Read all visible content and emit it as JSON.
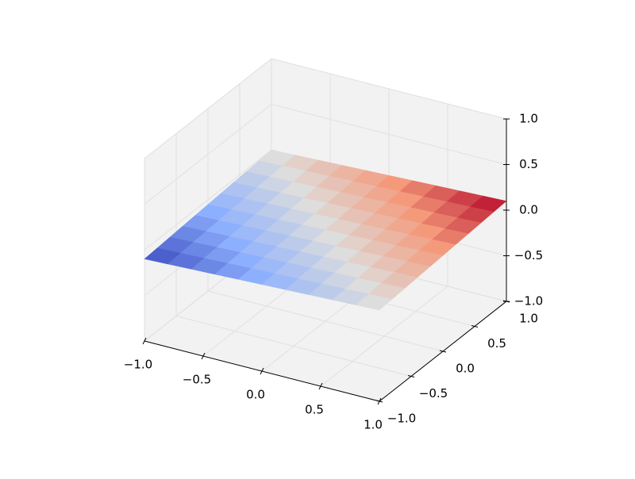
{
  "chart_data": {
    "type": "surface",
    "colormap": "coolwarm",
    "x": [
      -1,
      -0.8,
      -0.6,
      -0.4,
      -0.2,
      0,
      0.2,
      0.4,
      0.6,
      0.8,
      1
    ],
    "y": [
      -1,
      -0.8,
      -0.6,
      -0.4,
      -0.2,
      0,
      0.2,
      0.4,
      0.6,
      0.8,
      1
    ],
    "z": [
      [
        -0.1,
        -0.09,
        -0.08,
        -0.07,
        -0.06,
        -0.05,
        -0.04,
        -0.03,
        -0.02,
        -0.01,
        0
      ],
      [
        -0.09,
        -0.08,
        -0.07,
        -0.06,
        -0.05,
        -0.04,
        -0.03,
        -0.02,
        -0.01,
        0,
        0.01
      ],
      [
        -0.08,
        -0.07,
        -0.06,
        -0.05,
        -0.04,
        -0.03,
        -0.02,
        -0.01,
        0,
        0.01,
        0.02
      ],
      [
        -0.07,
        -0.06,
        -0.05,
        -0.04,
        -0.03,
        -0.02,
        -0.01,
        0,
        0.01,
        0.02,
        0.03
      ],
      [
        -0.06,
        -0.05,
        -0.04,
        -0.03,
        -0.02,
        -0.01,
        0,
        0.01,
        0.02,
        0.03,
        0.04
      ],
      [
        -0.05,
        -0.04,
        -0.03,
        -0.02,
        -0.01,
        0,
        0.01,
        0.02,
        0.03,
        0.04,
        0.05
      ],
      [
        -0.04,
        -0.03,
        -0.02,
        -0.01,
        0,
        0.01,
        0.02,
        0.03,
        0.04,
        0.05,
        0.06
      ],
      [
        -0.03,
        -0.02,
        -0.01,
        0,
        0.01,
        0.02,
        0.03,
        0.04,
        0.05,
        0.06,
        0.07
      ],
      [
        -0.02,
        -0.01,
        0,
        0.01,
        0.02,
        0.03,
        0.04,
        0.05,
        0.06,
        0.07,
        0.08
      ],
      [
        -0.01,
        0,
        0.01,
        0.02,
        0.03,
        0.04,
        0.05,
        0.06,
        0.07,
        0.08,
        0.09
      ],
      [
        0,
        0.01,
        0.02,
        0.03,
        0.04,
        0.05,
        0.06,
        0.07,
        0.08,
        0.09,
        0.1
      ]
    ],
    "xlim": [
      -1,
      1
    ],
    "ylim": [
      -1,
      1
    ],
    "zlim": [
      -1,
      1
    ],
    "xticks": [
      {
        "value": -1,
        "label": "−1.0"
      },
      {
        "value": -0.5,
        "label": "−0.5"
      },
      {
        "value": 0,
        "label": "0.0"
      },
      0.5,
      {
        "value": 1,
        "label": "1.0"
      }
    ],
    "yticks": [
      {
        "value": -1,
        "label": "−1.0"
      },
      {
        "value": -0.5,
        "label": "−0.5"
      },
      {
        "value": 0,
        "label": "0.0"
      },
      0.5,
      {
        "value": 1,
        "label": "1.0"
      }
    ],
    "zticks": [
      {
        "value": -1,
        "label": "−1.0"
      },
      {
        "value": -0.5,
        "label": "−0.5"
      },
      {
        "value": 0,
        "label": "0.0"
      },
      0.5,
      {
        "value": 1,
        "label": "1.0"
      }
    ],
    "grid": true
  }
}
